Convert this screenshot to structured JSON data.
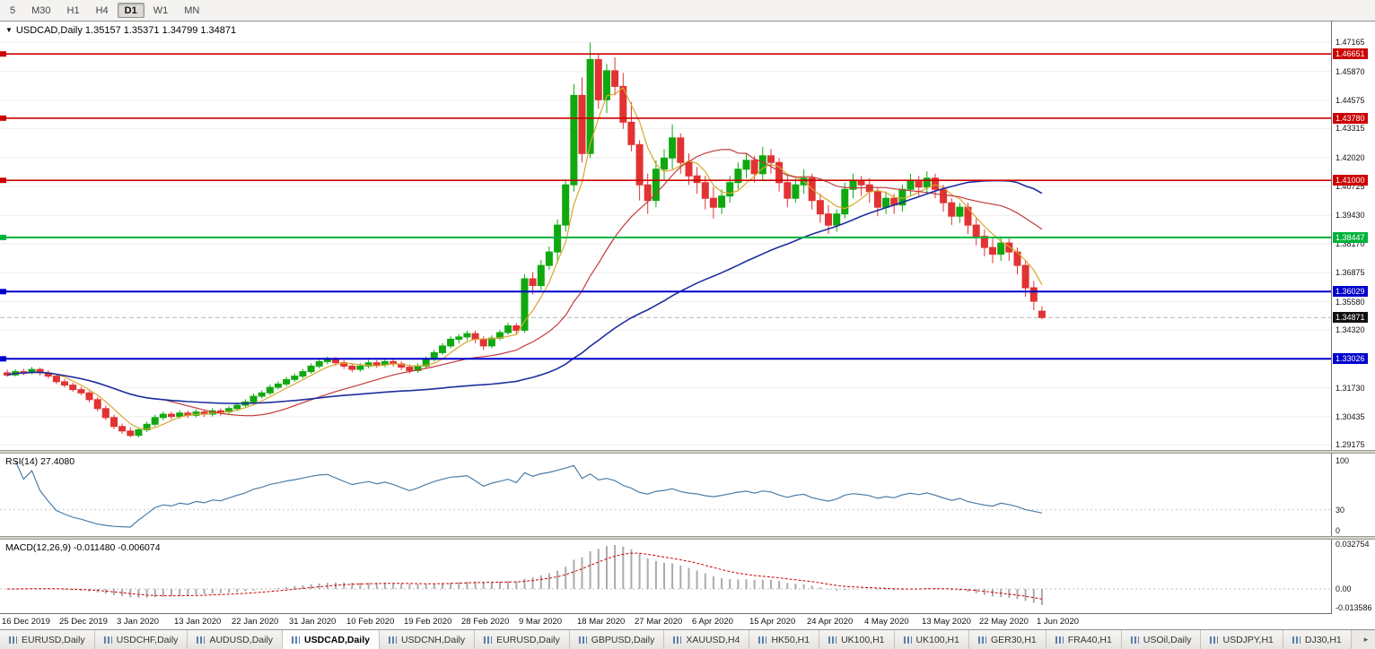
{
  "toolbar": {
    "timeframes": [
      {
        "label": "5",
        "active": false
      },
      {
        "label": "M30",
        "active": false
      },
      {
        "label": "H1",
        "active": false
      },
      {
        "label": "H4",
        "active": false
      },
      {
        "label": "D1",
        "active": true
      },
      {
        "label": "W1",
        "active": false
      },
      {
        "label": "MN",
        "active": false
      }
    ]
  },
  "chart": {
    "title_icon": "▼",
    "title": "USDCAD,Daily 1.35157 1.35371 1.34799 1.34871",
    "ohlc_display": {
      "open": "1.35157",
      "high": "1.35371",
      "low": "1.34799",
      "close": "1.34871"
    },
    "price_axis": [
      "1.47165",
      "1.45870",
      "1.44575",
      "1.43315",
      "1.42020",
      "1.40725",
      "1.39430",
      "1.38170",
      "1.36875",
      "1.35580",
      "1.34320",
      "1.33025",
      "1.31730",
      "1.30435",
      "1.29175"
    ],
    "current_price_label": "1.34871"
  },
  "rsi": {
    "label": "RSI(14) 27.4080"
  },
  "macd": {
    "label": "MACD(12,26,9) -0.011480 -0.006074"
  },
  "dates": [
    "16 Dec 2019",
    "25 Dec 2019",
    "3 Jan 2020",
    "13 Jan 2020",
    "22 Jan 2020",
    "31 Jan 2020",
    "10 Feb 2020",
    "19 Feb 2020",
    "28 Feb 2020",
    "9 Mar 2020",
    "18 Mar 2020",
    "27 Mar 2020",
    "6 Apr 2020",
    "15 Apr 2020",
    "24 Apr 2020",
    "4 May 2020",
    "13 May 2020",
    "22 May 2020",
    "1 Jun 2020"
  ],
  "tab_scroll_right": "▸",
  "tabs": [
    {
      "label": "EURUSD,Daily",
      "active": false
    },
    {
      "label": "USDCHF,Daily",
      "active": false
    },
    {
      "label": "AUDUSD,Daily",
      "active": false
    },
    {
      "label": "USDCAD,Daily",
      "active": true
    },
    {
      "label": "USDCNH,Daily",
      "active": false
    },
    {
      "label": "EURUSD,Daily",
      "active": false
    },
    {
      "label": "GBPUSD,Daily",
      "active": false
    },
    {
      "label": "XAUUSD,H4",
      "active": false
    },
    {
      "label": "HK50,H1",
      "active": false
    },
    {
      "label": "UK100,H1",
      "active": false
    },
    {
      "label": "UK100,H1",
      "active": false
    },
    {
      "label": "GER30,H1",
      "active": false
    },
    {
      "label": "FRA40,H1",
      "active": false
    },
    {
      "label": "USOil,Daily",
      "active": false
    },
    {
      "label": "USDJPY,H1",
      "active": false
    },
    {
      "label": "DJ30,H1",
      "active": false
    }
  ],
  "chart_data": {
    "type": "candlestick",
    "symbol": "USDCAD",
    "timeframe": "Daily",
    "bars_per_label": 7,
    "price_range": [
      1.2895,
      1.481
    ],
    "current_price": 1.34871,
    "bull_color": "#0FA90F",
    "bear_color": "#E23232",
    "hlines": [
      {
        "price": 1.46651,
        "label": "1.46651",
        "color": "#CC0000",
        "width": 1.6
      },
      {
        "price": 1.4378,
        "label": "1.43780",
        "color": "#CC0000",
        "width": 1.6
      },
      {
        "price": 1.41,
        "label": "1.41000",
        "color": "#CC0000",
        "width": 1.6
      },
      {
        "price": 1.38447,
        "label": "1.38447",
        "color": "#00B33C",
        "width": 2
      },
      {
        "price": 1.36029,
        "label": "1.36029",
        "color": "#0000CC",
        "width": 2
      },
      {
        "price": 1.33026,
        "label": "1.33026",
        "color": "#0000CC",
        "width": 2
      }
    ],
    "overlays": [
      {
        "name": "ma-fast",
        "type": "sma",
        "period": 5,
        "color": "#D9A62E",
        "width": 1.2
      },
      {
        "name": "ma-mid",
        "type": "sma",
        "period": 20,
        "color": "#C03A3A",
        "width": 1.2
      },
      {
        "name": "ma-slow",
        "type": "sma",
        "period": 55,
        "color": "#1D2E9E",
        "width": 1.6
      }
    ],
    "indicators": [
      {
        "name": "RSI",
        "period": 14,
        "value": 27.408,
        "color": "#4D7EA8",
        "levels": [
          30
        ],
        "range": [
          0,
          100
        ],
        "axis_labels": [
          "100",
          "30",
          "0"
        ]
      },
      {
        "name": "MACD",
        "fast": 12,
        "slow": 26,
        "signal": 9,
        "values": [
          -0.01148,
          -0.006074
        ],
        "hist_color": "#ABABAB",
        "signal_color": "#CC0000",
        "axis_labels": [
          "0.032754",
          "0.00",
          "-0.013586"
        ]
      }
    ],
    "candles": [
      [
        1.324,
        1.3254,
        1.3222,
        1.323
      ],
      [
        1.323,
        1.3256,
        1.3224,
        1.3245
      ],
      [
        1.3245,
        1.3258,
        1.323,
        1.324
      ],
      [
        1.324,
        1.3266,
        1.3234,
        1.3255
      ],
      [
        1.3255,
        1.3263,
        1.3228,
        1.324
      ],
      [
        1.324,
        1.3251,
        1.3214,
        1.3225
      ],
      [
        1.3225,
        1.3236,
        1.319,
        1.32
      ],
      [
        1.32,
        1.3212,
        1.3175,
        1.3185
      ],
      [
        1.3185,
        1.3196,
        1.3155,
        1.3165
      ],
      [
        1.3165,
        1.3177,
        1.314,
        1.315
      ],
      [
        1.315,
        1.3159,
        1.3108,
        1.312
      ],
      [
        1.312,
        1.3131,
        1.3068,
        1.308
      ],
      [
        1.308,
        1.3092,
        1.3028,
        1.304
      ],
      [
        1.304,
        1.3052,
        1.2988,
        1.3
      ],
      [
        1.3,
        1.3013,
        1.2968,
        1.298
      ],
      [
        1.298,
        1.2995,
        1.2952,
        1.296
      ],
      [
        1.296,
        1.2997,
        1.295,
        1.2985
      ],
      [
        1.2985,
        1.3022,
        1.2975,
        1.301
      ],
      [
        1.301,
        1.3052,
        1.3,
        1.304
      ],
      [
        1.304,
        1.3067,
        1.3028,
        1.3055
      ],
      [
        1.3055,
        1.3066,
        1.3033,
        1.3045
      ],
      [
        1.3045,
        1.3072,
        1.3035,
        1.306
      ],
      [
        1.306,
        1.3071,
        1.3038,
        1.305
      ],
      [
        1.305,
        1.3077,
        1.304,
        1.3065
      ],
      [
        1.3065,
        1.3076,
        1.3043,
        1.3055
      ],
      [
        1.3055,
        1.3082,
        1.3045,
        1.307
      ],
      [
        1.307,
        1.3081,
        1.3048,
        1.3065
      ],
      [
        1.3065,
        1.3092,
        1.3055,
        1.308
      ],
      [
        1.308,
        1.3107,
        1.307,
        1.3095
      ],
      [
        1.3095,
        1.3122,
        1.3085,
        1.311
      ],
      [
        1.311,
        1.3147,
        1.31,
        1.3135
      ],
      [
        1.3135,
        1.3162,
        1.3125,
        1.315
      ],
      [
        1.315,
        1.3187,
        1.314,
        1.3175
      ],
      [
        1.3175,
        1.3202,
        1.3165,
        1.319
      ],
      [
        1.319,
        1.3222,
        1.318,
        1.321
      ],
      [
        1.321,
        1.3237,
        1.32,
        1.3225
      ],
      [
        1.3225,
        1.3257,
        1.3215,
        1.3245
      ],
      [
        1.3245,
        1.3282,
        1.3235,
        1.327
      ],
      [
        1.327,
        1.3302,
        1.326,
        1.329
      ],
      [
        1.329,
        1.3313,
        1.3278,
        1.33
      ],
      [
        1.33,
        1.3311,
        1.3272,
        1.3285
      ],
      [
        1.3285,
        1.3297,
        1.3257,
        1.327
      ],
      [
        1.327,
        1.3282,
        1.3242,
        1.3255
      ],
      [
        1.3255,
        1.3283,
        1.3245,
        1.327
      ],
      [
        1.327,
        1.3298,
        1.326,
        1.3285
      ],
      [
        1.3285,
        1.3297,
        1.3262,
        1.3275
      ],
      [
        1.3275,
        1.3303,
        1.3265,
        1.329
      ],
      [
        1.329,
        1.3302,
        1.3267,
        1.328
      ],
      [
        1.328,
        1.3292,
        1.3252,
        1.3265
      ],
      [
        1.3265,
        1.3277,
        1.3237,
        1.325
      ],
      [
        1.325,
        1.3283,
        1.324,
        1.327
      ],
      [
        1.327,
        1.3313,
        1.326,
        1.33
      ],
      [
        1.33,
        1.3343,
        1.329,
        1.333
      ],
      [
        1.333,
        1.3373,
        1.332,
        1.336
      ],
      [
        1.336,
        1.3403,
        1.335,
        1.339
      ],
      [
        1.339,
        1.3413,
        1.3372,
        1.34
      ],
      [
        1.34,
        1.3428,
        1.3385,
        1.3415
      ],
      [
        1.3415,
        1.3428,
        1.3372,
        1.339
      ],
      [
        1.339,
        1.3403,
        1.3342,
        1.336
      ],
      [
        1.336,
        1.3408,
        1.335,
        1.3395
      ],
      [
        1.3395,
        1.3433,
        1.3385,
        1.342
      ],
      [
        1.342,
        1.3463,
        1.341,
        1.345
      ],
      [
        1.345,
        1.3462,
        1.3412,
        1.343
      ],
      [
        1.343,
        1.368,
        1.342,
        1.366
      ],
      [
        1.366,
        1.369,
        1.359,
        1.363
      ],
      [
        1.363,
        1.3745,
        1.361,
        1.372
      ],
      [
        1.372,
        1.3805,
        1.37,
        1.378
      ],
      [
        1.378,
        1.3925,
        1.373,
        1.39
      ],
      [
        1.39,
        1.4105,
        1.387,
        1.408
      ],
      [
        1.408,
        1.453,
        1.405,
        1.448
      ],
      [
        1.448,
        1.456,
        1.418,
        1.422
      ],
      [
        1.422,
        1.4716,
        1.42,
        1.464
      ],
      [
        1.464,
        1.4668,
        1.442,
        1.446
      ],
      [
        1.446,
        1.462,
        1.44,
        1.459
      ],
      [
        1.459,
        1.465,
        1.448,
        1.452
      ],
      [
        1.452,
        1.458,
        1.433,
        1.436
      ],
      [
        1.436,
        1.445,
        1.423,
        1.426
      ],
      [
        1.426,
        1.428,
        1.401,
        1.408
      ],
      [
        1.408,
        1.413,
        1.395,
        1.401
      ],
      [
        1.401,
        1.419,
        1.398,
        1.415
      ],
      [
        1.415,
        1.424,
        1.41,
        1.42
      ],
      [
        1.42,
        1.435,
        1.415,
        1.429
      ],
      [
        1.429,
        1.431,
        1.413,
        1.418
      ],
      [
        1.418,
        1.422,
        1.408,
        1.412
      ],
      [
        1.412,
        1.416,
        1.404,
        1.409
      ],
      [
        1.409,
        1.412,
        1.397,
        1.402
      ],
      [
        1.402,
        1.407,
        1.393,
        1.398
      ],
      [
        1.398,
        1.406,
        1.395,
        1.403
      ],
      [
        1.403,
        1.412,
        1.4,
        1.409
      ],
      [
        1.409,
        1.418,
        1.406,
        1.415
      ],
      [
        1.415,
        1.422,
        1.411,
        1.419
      ],
      [
        1.419,
        1.421,
        1.409,
        1.413
      ],
      [
        1.413,
        1.425,
        1.41,
        1.421
      ],
      [
        1.421,
        1.424,
        1.413,
        1.418
      ],
      [
        1.418,
        1.42,
        1.405,
        1.409
      ],
      [
        1.409,
        1.413,
        1.398,
        1.402
      ],
      [
        1.402,
        1.411,
        1.4,
        1.408
      ],
      [
        1.408,
        1.415,
        1.404,
        1.411
      ],
      [
        1.411,
        1.413,
        1.397,
        1.401
      ],
      [
        1.401,
        1.404,
        1.391,
        1.395
      ],
      [
        1.395,
        1.399,
        1.386,
        1.39
      ],
      [
        1.39,
        1.397,
        1.387,
        1.395
      ],
      [
        1.395,
        1.409,
        1.393,
        1.406
      ],
      [
        1.406,
        1.413,
        1.402,
        1.41
      ],
      [
        1.41,
        1.412,
        1.403,
        1.408
      ],
      [
        1.408,
        1.411,
        1.4,
        1.405
      ],
      [
        1.405,
        1.407,
        1.394,
        1.398
      ],
      [
        1.398,
        1.405,
        1.395,
        1.402
      ],
      [
        1.402,
        1.404,
        1.395,
        1.399
      ],
      [
        1.399,
        1.408,
        1.396,
        1.406
      ],
      [
        1.406,
        1.413,
        1.403,
        1.41
      ],
      [
        1.41,
        1.412,
        1.403,
        1.407
      ],
      [
        1.407,
        1.414,
        1.404,
        1.411
      ],
      [
        1.411,
        1.413,
        1.402,
        1.406
      ],
      [
        1.406,
        1.408,
        1.396,
        1.4
      ],
      [
        1.4,
        1.402,
        1.39,
        1.394
      ],
      [
        1.394,
        1.4,
        1.391,
        1.398
      ],
      [
        1.398,
        1.4,
        1.386,
        1.39
      ],
      [
        1.39,
        1.393,
        1.381,
        1.385
      ],
      [
        1.385,
        1.388,
        1.376,
        1.38
      ],
      [
        1.38,
        1.384,
        1.373,
        1.377
      ],
      [
        1.377,
        1.385,
        1.374,
        1.382
      ],
      [
        1.382,
        1.384,
        1.374,
        1.378
      ],
      [
        1.378,
        1.38,
        1.368,
        1.372
      ],
      [
        1.372,
        1.374,
        1.358,
        1.362
      ],
      [
        1.362,
        1.365,
        1.352,
        1.356
      ],
      [
        1.35157,
        1.35371,
        1.34799,
        1.34871
      ]
    ]
  }
}
